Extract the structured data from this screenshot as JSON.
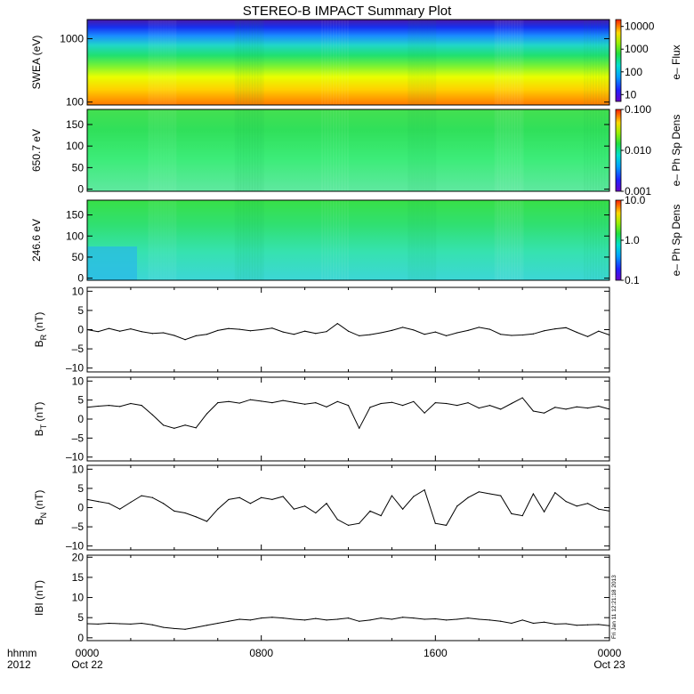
{
  "title": "STEREO-B IMPACT Summary Plot",
  "stamp": "Fri Jan 11 12:21:18 2013",
  "time_axis": {
    "corner_line1": "hhmm",
    "corner_line2": "2012",
    "ticks": [
      {
        "hour": 0,
        "label": "0000",
        "date": "Oct 22"
      },
      {
        "hour": 8,
        "label": "0800",
        "date": ""
      },
      {
        "hour": 16,
        "label": "1600",
        "date": ""
      },
      {
        "hour": 24,
        "label": "0000",
        "date": "Oct 23"
      }
    ],
    "range_hours": [
      0,
      24
    ]
  },
  "spectrograms": [
    {
      "ylabel": "SWEA (eV)",
      "yscale": "log",
      "yrange": [
        90,
        2000
      ],
      "yticks": [
        {
          "v": 100,
          "label": "100"
        },
        {
          "v": 1000,
          "label": "1000"
        }
      ],
      "colorbar_label": "e– Flux",
      "colorbar_scale": "log",
      "colorbar_range": [
        5,
        20000
      ],
      "colorbar_ticks": [
        {
          "v": 10,
          "label": "10"
        },
        {
          "v": 100,
          "label": "100"
        },
        {
          "v": 1000,
          "label": "1000"
        },
        {
          "v": 10000,
          "label": "10000"
        }
      ]
    },
    {
      "ylabel": "650.7 eV",
      "yscale": "linear",
      "yrange": [
        -5,
        185
      ],
      "yticks": [
        {
          "v": 0,
          "label": "0"
        },
        {
          "v": 50,
          "label": "50"
        },
        {
          "v": 100,
          "label": "100"
        },
        {
          "v": 150,
          "label": "150"
        }
      ],
      "colorbar_label": "e– Ph Sp Dens",
      "colorbar_scale": "log",
      "colorbar_range": [
        0.001,
        0.1
      ],
      "colorbar_ticks": [
        {
          "v": 0.001,
          "label": "0.001"
        },
        {
          "v": 0.01,
          "label": "0.010"
        },
        {
          "v": 0.1,
          "label": "0.100"
        }
      ]
    },
    {
      "ylabel": "246.6 eV",
      "yscale": "linear",
      "yrange": [
        -5,
        185
      ],
      "yticks": [
        {
          "v": 0,
          "label": "0"
        },
        {
          "v": 50,
          "label": "50"
        },
        {
          "v": 100,
          "label": "100"
        },
        {
          "v": 150,
          "label": "150"
        }
      ],
      "colorbar_label": "e– Ph Sp Dens",
      "colorbar_scale": "log",
      "colorbar_range": [
        0.1,
        10
      ],
      "colorbar_ticks": [
        {
          "v": 0.1,
          "label": "0.1"
        },
        {
          "v": 1,
          "label": "1.0"
        },
        {
          "v": 10,
          "label": "10.0"
        }
      ]
    }
  ],
  "chart_data": [
    {
      "type": "line",
      "ylabel_main": "B",
      "ylabel_sub": "R",
      "ylabel_unit": " (nT)",
      "ylim": [
        -11,
        11
      ],
      "yticks": [
        {
          "v": -10,
          "label": "–10"
        },
        {
          "v": -5,
          "label": "–5"
        },
        {
          "v": 0,
          "label": "0"
        },
        {
          "v": 5,
          "label": "5"
        },
        {
          "v": 10,
          "label": "10"
        }
      ],
      "x": [
        0,
        0.5,
        1,
        1.5,
        2,
        2.5,
        3,
        3.5,
        4,
        4.5,
        5,
        5.5,
        6,
        6.5,
        7,
        7.5,
        8,
        8.5,
        9,
        9.5,
        10,
        10.5,
        11,
        11.5,
        12,
        12.5,
        13,
        13.5,
        14,
        14.5,
        15,
        15.5,
        16,
        16.5,
        17,
        17.5,
        18,
        18.5,
        19,
        19.5,
        20,
        20.5,
        21,
        21.5,
        22,
        22.5,
        23,
        23.5,
        24
      ],
      "y": [
        0,
        -0.5,
        0.3,
        -0.4,
        0.2,
        -0.5,
        -1,
        -0.8,
        -1.5,
        -2.6,
        -1.6,
        -1.2,
        -0.2,
        0.3,
        0.1,
        -0.3,
        0,
        0.4,
        -0.6,
        -1.2,
        -0.4,
        -1,
        -0.5,
        1.6,
        -0.4,
        -1.6,
        -1.3,
        -0.8,
        -0.2,
        0.6,
        -0.1,
        -1.2,
        -0.6,
        -1.6,
        -0.8,
        -0.2,
        0.6,
        0.1,
        -1.2,
        -1.5,
        -1.4,
        -1.1,
        -0.3,
        0.2,
        0.5,
        -0.7,
        -1.8,
        -0.4,
        -1.4
      ]
    },
    {
      "type": "line",
      "ylabel_main": "B",
      "ylabel_sub": "T",
      "ylabel_unit": " (nT)",
      "ylim": [
        -11,
        11
      ],
      "yticks": [
        {
          "v": -10,
          "label": "–10"
        },
        {
          "v": -5,
          "label": "–5"
        },
        {
          "v": 0,
          "label": "0"
        },
        {
          "v": 5,
          "label": "5"
        },
        {
          "v": 10,
          "label": "10"
        }
      ],
      "x": [
        0,
        0.5,
        1,
        1.5,
        2,
        2.5,
        3,
        3.5,
        4,
        4.5,
        5,
        5.5,
        6,
        6.5,
        7,
        7.5,
        8,
        8.5,
        9,
        9.5,
        10,
        10.5,
        11,
        11.5,
        12,
        12.5,
        13,
        13.5,
        14,
        14.5,
        15,
        15.5,
        16,
        16.5,
        17,
        17.5,
        18,
        18.5,
        19,
        19.5,
        20,
        20.5,
        21,
        21.5,
        22,
        22.5,
        23,
        23.5,
        24
      ],
      "y": [
        3.1,
        3.4,
        3.6,
        3.3,
        4.1,
        3.6,
        1.1,
        -1.6,
        -2.4,
        -1.6,
        -2.3,
        1.4,
        4.3,
        4.6,
        4.2,
        5.1,
        4.7,
        4.3,
        4.9,
        4.4,
        3.9,
        4.3,
        3.2,
        4.6,
        3.6,
        -2.4,
        3.1,
        4.1,
        4.4,
        3.6,
        4.6,
        1.6,
        4.3,
        4.1,
        3.6,
        4.3,
        2.9,
        3.6,
        2.6,
        4.1,
        5.6,
        2.1,
        1.6,
        3.1,
        2.6,
        3.2,
        2.9,
        3.4,
        2.6
      ]
    },
    {
      "type": "line",
      "ylabel_main": "B",
      "ylabel_sub": "N",
      "ylabel_unit": " (nT)",
      "ylim": [
        -11,
        11
      ],
      "yticks": [
        {
          "v": -10,
          "label": "–10"
        },
        {
          "v": -5,
          "label": "–5"
        },
        {
          "v": 0,
          "label": "0"
        },
        {
          "v": 5,
          "label": "5"
        },
        {
          "v": 10,
          "label": "10"
        }
      ],
      "x": [
        0,
        0.5,
        1,
        1.5,
        2,
        2.5,
        3,
        3.5,
        4,
        4.5,
        5,
        5.5,
        6,
        6.5,
        7,
        7.5,
        8,
        8.5,
        9,
        9.5,
        10,
        10.5,
        11,
        11.5,
        12,
        12.5,
        13,
        13.5,
        14,
        14.5,
        15,
        15.5,
        16,
        16.5,
        17,
        17.5,
        18,
        18.5,
        19,
        19.5,
        20,
        20.5,
        21,
        21.5,
        22,
        22.5,
        23,
        23.5,
        24
      ],
      "y": [
        2.1,
        1.6,
        1.1,
        -0.4,
        1.4,
        3.1,
        2.6,
        1.1,
        -0.9,
        -1.4,
        -2.4,
        -3.6,
        -0.4,
        2.1,
        2.6,
        1.1,
        2.6,
        2.1,
        2.9,
        -0.4,
        0.4,
        -1.4,
        1.1,
        -3.1,
        -4.6,
        -4.1,
        -0.9,
        -2.1,
        3.1,
        -0.4,
        2.9,
        4.6,
        -4.1,
        -4.6,
        0.4,
        2.6,
        4.1,
        3.6,
        3.1,
        -1.6,
        -2.1,
        3.6,
        -1.1,
        3.9,
        1.6,
        0.4,
        1.1,
        -0.4,
        -0.9
      ]
    },
    {
      "type": "line",
      "ylabel_main": "IBI",
      "ylabel_sub": "",
      "ylabel_unit": " (nT)",
      "ylim": [
        -0.7,
        20.5
      ],
      "yticks": [
        {
          "v": 0,
          "label": "0"
        },
        {
          "v": 5,
          "label": "5"
        },
        {
          "v": 10,
          "label": "10"
        },
        {
          "v": 15,
          "label": "15"
        },
        {
          "v": 20,
          "label": "20"
        }
      ],
      "x": [
        0,
        0.5,
        1,
        1.5,
        2,
        2.5,
        3,
        3.5,
        4,
        4.5,
        5,
        5.5,
        6,
        6.5,
        7,
        7.5,
        8,
        8.5,
        9,
        9.5,
        10,
        10.5,
        11,
        11.5,
        12,
        12.5,
        13,
        13.5,
        14,
        14.5,
        15,
        15.5,
        16,
        16.5,
        17,
        17.5,
        18,
        18.5,
        19,
        19.5,
        20,
        20.5,
        21,
        21.5,
        22,
        22.5,
        23,
        23.5,
        24
      ],
      "y": [
        3.5,
        3.4,
        3.6,
        3.5,
        3.4,
        3.6,
        3.2,
        2.6,
        2.3,
        2.1,
        2.6,
        3.1,
        3.6,
        4.1,
        4.6,
        4.4,
        4.9,
        5.1,
        4.9,
        4.6,
        4.4,
        4.8,
        4.4,
        4.6,
        4.9,
        4.1,
        4.4,
        4.9,
        4.6,
        5.1,
        4.9,
        4.6,
        4.7,
        4.4,
        4.6,
        4.9,
        4.6,
        4.4,
        4.1,
        3.6,
        4.4,
        3.6,
        3.9,
        3.4,
        3.5,
        3.1,
        3.2,
        3.3,
        3.0
      ]
    }
  ]
}
